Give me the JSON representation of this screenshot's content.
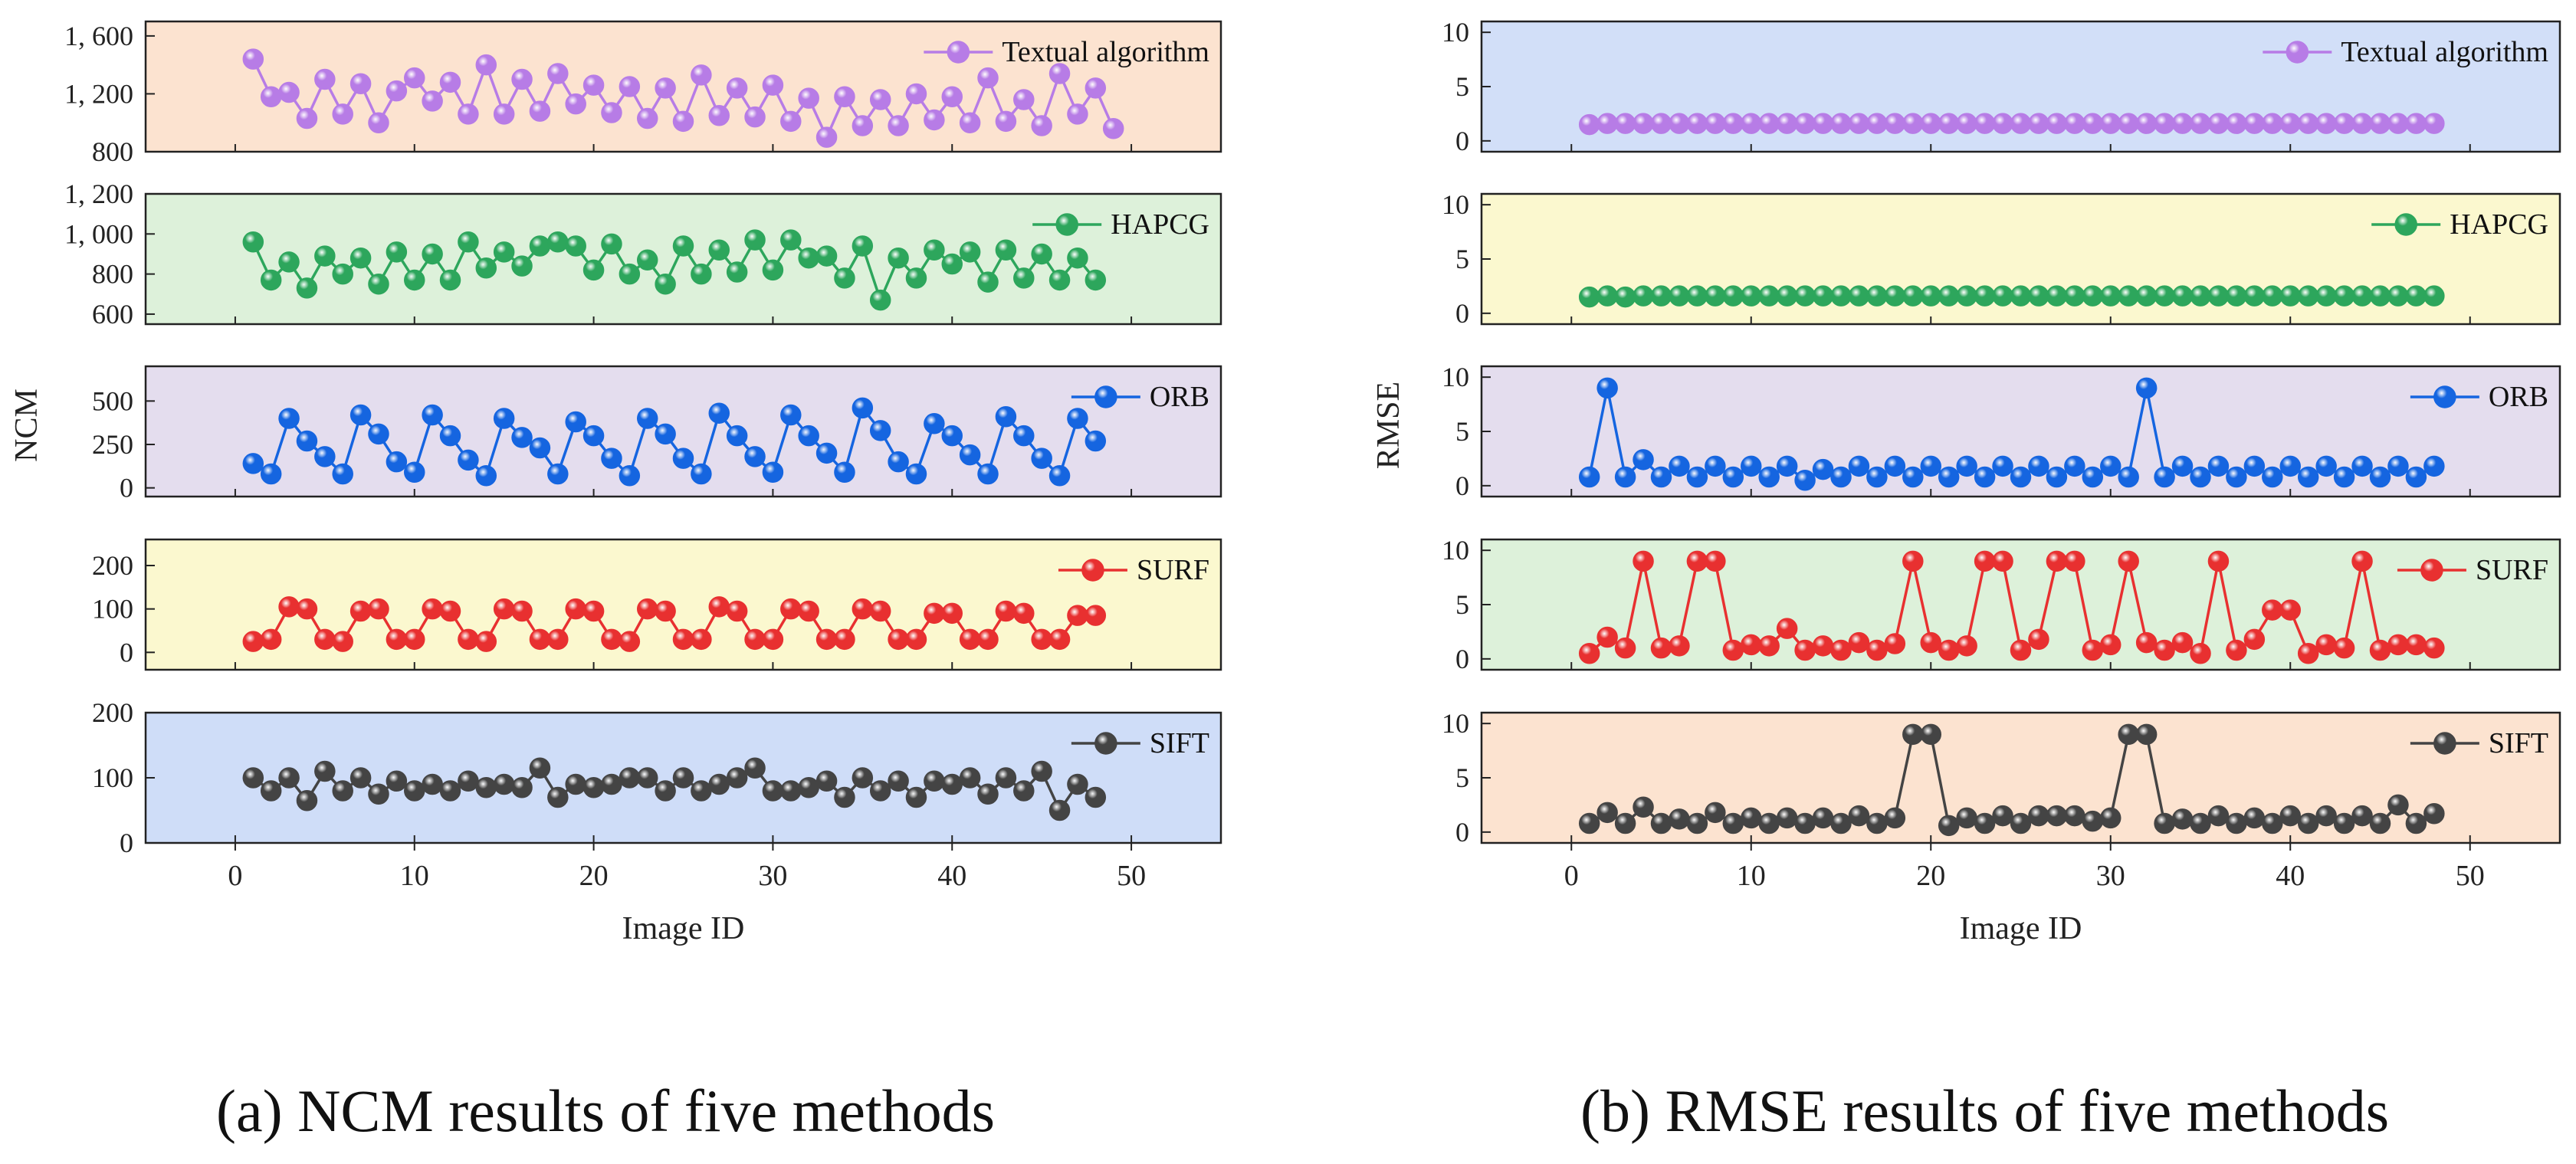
{
  "captions": {
    "left": "(a) NCM results of five methods",
    "right": "(b) RMSE results of five methods"
  },
  "chart_data": [
    {
      "type": "line",
      "id": "ncm",
      "title": "(a) NCM results of five methods",
      "xlabel": "Image ID",
      "ylabel": "NCM",
      "xlim": [
        -5,
        55
      ],
      "xticks": [
        0,
        10,
        20,
        30,
        40,
        50
      ],
      "panels": [
        {
          "name": "Textual algorithm",
          "color": "#B77CE6",
          "bg": "#FCE3D0",
          "ylim": [
            800,
            1700
          ],
          "yticks": [
            800,
            1200,
            1600
          ],
          "yticklabels": [
            "800",
            "1, 200",
            "1, 600"
          ],
          "values": [
            1440,
            1180,
            1210,
            1030,
            1300,
            1060,
            1270,
            1000,
            1220,
            1310,
            1150,
            1280,
            1060,
            1400,
            1060,
            1300,
            1080,
            1340,
            1130,
            1260,
            1070,
            1250,
            1030,
            1240,
            1010,
            1330,
            1050,
            1240,
            1040,
            1260,
            1010,
            1170,
            900,
            1180,
            980,
            1160,
            980,
            1200,
            1020,
            1180,
            1000,
            1310,
            1010,
            1160,
            980,
            1340,
            1060,
            1240,
            960
          ]
        },
        {
          "name": "HAPCG",
          "color": "#2DA65C",
          "bg": "#DDF1DA",
          "ylim": [
            550,
            1200
          ],
          "yticks": [
            600,
            800,
            1000,
            1200
          ],
          "yticklabels": [
            "600",
            "800",
            "1, 000",
            "1, 200"
          ],
          "values": [
            960,
            770,
            860,
            730,
            890,
            800,
            880,
            750,
            910,
            770,
            900,
            770,
            960,
            830,
            910,
            840,
            940,
            960,
            940,
            820,
            950,
            800,
            870,
            750,
            940,
            800,
            920,
            810,
            970,
            820,
            970,
            880,
            890,
            780,
            940,
            670,
            880,
            780,
            920,
            850,
            910,
            760,
            920,
            780,
            900,
            770,
            880,
            770
          ]
        },
        {
          "name": "ORB",
          "color": "#1565E0",
          "bg": "#E4DDEE",
          "ylim": [
            -50,
            700
          ],
          "yticks": [
            0,
            250,
            500
          ],
          "yticklabels": [
            "0",
            "250",
            "500"
          ],
          "values": [
            140,
            80,
            400,
            270,
            180,
            80,
            420,
            310,
            150,
            90,
            420,
            300,
            160,
            70,
            400,
            290,
            230,
            80,
            380,
            300,
            170,
            70,
            400,
            310,
            170,
            80,
            430,
            300,
            180,
            90,
            420,
            300,
            200,
            90,
            460,
            330,
            150,
            80,
            370,
            300,
            190,
            80,
            410,
            300,
            170,
            70,
            400,
            270
          ]
        },
        {
          "name": "SURF",
          "color": "#E83030",
          "bg": "#FBF8CF",
          "ylim": [
            -40,
            260
          ],
          "yticks": [
            0,
            100,
            200
          ],
          "yticklabels": [
            "0",
            "100",
            "200"
          ],
          "values": [
            25,
            30,
            105,
            100,
            30,
            25,
            95,
            100,
            30,
            30,
            100,
            95,
            30,
            25,
            100,
            95,
            30,
            30,
            100,
            95,
            30,
            25,
            100,
            95,
            30,
            30,
            105,
            95,
            30,
            30,
            100,
            95,
            30,
            30,
            100,
            95,
            30,
            30,
            90,
            90,
            30,
            30,
            95,
            90,
            30,
            30,
            85,
            85
          ]
        },
        {
          "name": "SIFT",
          "color": "#444444",
          "bg": "#CFDDF8",
          "ylim": [
            0,
            200
          ],
          "yticks": [
            0,
            100,
            200
          ],
          "yticklabels": [
            "0",
            "100",
            "200"
          ],
          "values": [
            100,
            80,
            100,
            65,
            110,
            80,
            100,
            75,
            95,
            80,
            90,
            80,
            95,
            85,
            90,
            85,
            115,
            70,
            90,
            85,
            90,
            100,
            100,
            80,
            100,
            80,
            90,
            100,
            115,
            80,
            80,
            85,
            95,
            70,
            100,
            80,
            95,
            70,
            95,
            90,
            100,
            75,
            100,
            80,
            110,
            50,
            90,
            70
          ]
        }
      ]
    },
    {
      "type": "line",
      "id": "rmse",
      "title": "(b) RMSE results of five methods",
      "xlabel": "Image ID",
      "ylabel": "RMSE",
      "xlim": [
        -5,
        55
      ],
      "xticks": [
        0,
        10,
        20,
        30,
        40,
        50
      ],
      "panels": [
        {
          "name": "Textual algorithm",
          "color": "#B77CE6",
          "bg": "#D2DFF8",
          "ylim": [
            -1,
            11
          ],
          "yticks": [
            0,
            5,
            10
          ],
          "yticklabels": [
            "0",
            "5",
            "10"
          ],
          "values": [
            1.5,
            1.6,
            1.6,
            1.6,
            1.6,
            1.6,
            1.6,
            1.6,
            1.6,
            1.6,
            1.6,
            1.6,
            1.6,
            1.6,
            1.6,
            1.6,
            1.6,
            1.6,
            1.6,
            1.6,
            1.6,
            1.6,
            1.6,
            1.6,
            1.6,
            1.6,
            1.6,
            1.6,
            1.6,
            1.6,
            1.6,
            1.6,
            1.6,
            1.6,
            1.6,
            1.6,
            1.6,
            1.6,
            1.6,
            1.6,
            1.6,
            1.6,
            1.6,
            1.6,
            1.6,
            1.6,
            1.6,
            1.6
          ]
        },
        {
          "name": "HAPCG",
          "color": "#2DA65C",
          "bg": "#FBF8CF",
          "ylim": [
            -1,
            11
          ],
          "yticks": [
            0,
            5,
            10
          ],
          "yticklabels": [
            "0",
            "5",
            "10"
          ],
          "values": [
            1.5,
            1.6,
            1.5,
            1.6,
            1.6,
            1.6,
            1.6,
            1.6,
            1.6,
            1.6,
            1.6,
            1.6,
            1.6,
            1.6,
            1.6,
            1.6,
            1.6,
            1.6,
            1.6,
            1.6,
            1.6,
            1.6,
            1.6,
            1.6,
            1.6,
            1.6,
            1.6,
            1.6,
            1.6,
            1.6,
            1.6,
            1.6,
            1.6,
            1.6,
            1.6,
            1.6,
            1.6,
            1.6,
            1.6,
            1.6,
            1.6,
            1.6,
            1.6,
            1.6,
            1.6,
            1.6,
            1.6,
            1.6
          ]
        },
        {
          "name": "ORB",
          "color": "#1565E0",
          "bg": "#E4DDEE",
          "ylim": [
            -1,
            11
          ],
          "yticks": [
            0,
            5,
            10
          ],
          "yticklabels": [
            "0",
            "5",
            "10"
          ],
          "values": [
            0.8,
            9,
            0.8,
            2.4,
            0.8,
            1.8,
            0.8,
            1.8,
            0.8,
            1.8,
            0.8,
            1.8,
            0.5,
            1.5,
            0.8,
            1.8,
            0.8,
            1.8,
            0.8,
            1.8,
            0.8,
            1.8,
            0.8,
            1.8,
            0.8,
            1.8,
            0.8,
            1.8,
            0.8,
            1.8,
            0.8,
            9,
            0.8,
            1.8,
            0.8,
            1.8,
            0.8,
            1.8,
            0.8,
            1.8,
            0.8,
            1.8,
            0.8,
            1.8,
            0.8,
            1.8,
            0.8,
            1.8
          ]
        },
        {
          "name": "SURF",
          "color": "#E83030",
          "bg": "#DDF1DA",
          "ylim": [
            -1,
            11
          ],
          "yticks": [
            0,
            5,
            10
          ],
          "yticklabels": [
            "0",
            "5",
            "10"
          ],
          "values": [
            0.5,
            2,
            1,
            9,
            1,
            1.2,
            9,
            9,
            0.8,
            1.3,
            1.2,
            2.8,
            0.8,
            1.2,
            0.8,
            1.5,
            0.8,
            1.4,
            9,
            1.5,
            0.8,
            1.2,
            9,
            9,
            0.8,
            1.8,
            9,
            9,
            0.8,
            1.3,
            9,
            1.5,
            0.8,
            1.5,
            0.5,
            9,
            0.8,
            1.8,
            4.5,
            4.5,
            0.5,
            1.3,
            1,
            9,
            0.8,
            1.3,
            1.3,
            1
          ]
        },
        {
          "name": "SIFT",
          "color": "#444444",
          "bg": "#FCE3D0",
          "ylim": [
            -1,
            11
          ],
          "yticks": [
            0,
            5,
            10
          ],
          "yticklabels": [
            "0",
            "5",
            "10"
          ],
          "values": [
            0.8,
            1.8,
            0.8,
            2.3,
            0.8,
            1.2,
            0.8,
            1.8,
            0.8,
            1.3,
            0.8,
            1.3,
            0.8,
            1.3,
            0.8,
            1.5,
            0.8,
            1.3,
            9,
            9,
            0.6,
            1.3,
            0.8,
            1.5,
            0.8,
            1.5,
            1.5,
            1.5,
            1,
            1.3,
            9,
            9,
            0.8,
            1.2,
            0.8,
            1.5,
            0.8,
            1.3,
            0.8,
            1.5,
            0.8,
            1.5,
            0.8,
            1.5,
            0.8,
            2.5,
            0.8,
            1.7
          ]
        }
      ]
    }
  ]
}
